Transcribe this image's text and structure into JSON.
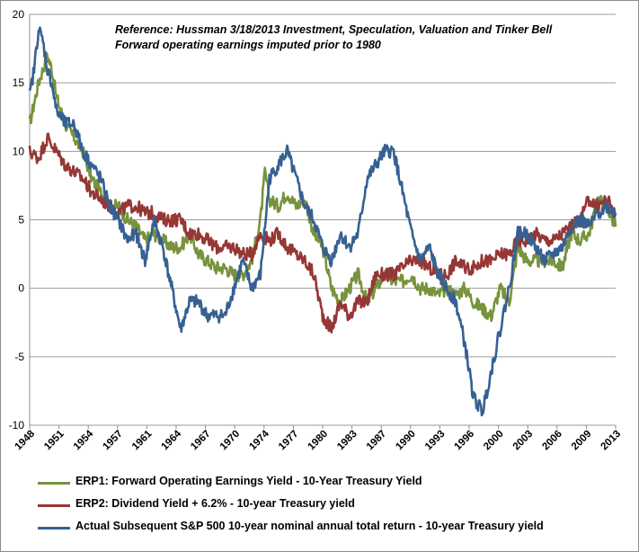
{
  "annotations": [
    "Reference: Hussman 3/18/2013  Investment, Speculation, Valuation and Tinker Bell",
    "Forward operating earnings imputed prior to 1980"
  ],
  "legend": [
    {
      "label": "ERP1: Forward Operating Earnings Yield - 10-Year Treasury Yield",
      "color": "#77933c"
    },
    {
      "label": "ERP2: Dividend Yield + 6.2% - 10-year Treasury yield",
      "color": "#953735"
    },
    {
      "label": "Actual Subsequent S&P 500 10-year nominal annual total return - 10-year Treasury yield",
      "color": "#376092"
    }
  ],
  "chart_data": {
    "type": "line",
    "title": "",
    "xlabel": "",
    "ylabel": "",
    "xlim": [
      1948,
      2014
    ],
    "ylim": [
      -10,
      20
    ],
    "x_ticks": [
      "1948",
      "1951",
      "1954",
      "1957",
      "1961",
      "1964",
      "1967",
      "1970",
      "1974",
      "1977",
      "1980",
      "1983",
      "1987",
      "1990",
      "1993",
      "1996",
      "2000",
      "2003",
      "2006",
      "2009",
      "2013"
    ],
    "y_ticks": [
      -10,
      -5,
      0,
      5,
      10,
      15,
      20
    ],
    "grid": "horizontal",
    "legend_position": "bottom",
    "series": [
      {
        "name": "ERP1: Forward Operating Earnings Yield - 10-Year Treasury Yield",
        "color": "#77933c",
        "x": [
          1948,
          1949,
          1950,
          1950.5,
          1951,
          1952,
          1953,
          1954,
          1955,
          1956,
          1957,
          1958,
          1959,
          1960,
          1961,
          1962,
          1963,
          1964,
          1965,
          1966,
          1967,
          1968,
          1969,
          1970,
          1971,
          1972,
          1973,
          1974,
          1974.5,
          1975,
          1976,
          1977,
          1978,
          1979,
          1980,
          1981,
          1982,
          1983,
          1984,
          1985,
          1986,
          1987,
          1988,
          1989,
          1990,
          1991,
          1992,
          1993,
          1994,
          1995,
          1996,
          1997,
          1998,
          1999,
          2000,
          2001,
          2002,
          2003,
          2004,
          2005,
          2006,
          2007,
          2008,
          2009,
          2010,
          2011,
          2012,
          2013,
          2014
        ],
        "y": [
          12,
          15,
          17,
          16,
          14,
          12,
          11,
          10,
          8,
          7,
          6,
          6,
          5,
          4.5,
          3.5,
          4,
          3.5,
          3,
          3,
          4,
          2.5,
          2,
          1.5,
          1.5,
          1,
          1,
          2,
          5,
          8.5,
          6.5,
          6,
          7,
          6,
          6.5,
          4,
          3,
          0,
          -1,
          0,
          1,
          -1,
          0,
          1,
          0.5,
          0.5,
          1,
          0,
          0,
          -0.5,
          0,
          -0.5,
          0,
          -1,
          -1.5,
          -2,
          0,
          -1,
          3,
          2,
          2,
          2,
          2,
          1.5,
          4,
          3.5,
          4,
          6.5,
          6,
          4.5
        ]
      },
      {
        "name": "ERP2: Dividend Yield + 6.2% - 10-year Treasury yield",
        "color": "#953735",
        "x": [
          1948,
          1949,
          1950,
          1951,
          1952,
          1953,
          1954,
          1955,
          1956,
          1957,
          1958,
          1959,
          1960,
          1961,
          1962,
          1963,
          1964,
          1965,
          1966,
          1967,
          1968,
          1969,
          1970,
          1971,
          1972,
          1973,
          1974,
          1975,
          1976,
          1977,
          1978,
          1979,
          1980,
          1981,
          1982,
          1983,
          1984,
          1985,
          1986,
          1987,
          1988,
          1989,
          1990,
          1991,
          1992,
          1993,
          1994,
          1995,
          1996,
          1997,
          1998,
          1999,
          2000,
          2001,
          2002,
          2003,
          2004,
          2005,
          2006,
          2007,
          2008,
          2009,
          2010,
          2011,
          2012,
          2013,
          2014
        ],
        "y": [
          10,
          9.5,
          11,
          10,
          9,
          8.5,
          8,
          7,
          6.5,
          6,
          5.5,
          6,
          6,
          5.5,
          5.5,
          5,
          5,
          5,
          4,
          4,
          3.5,
          3,
          3,
          3,
          2.5,
          2.5,
          4,
          3.5,
          4,
          3,
          2.5,
          2,
          1,
          -2,
          -3,
          -1,
          -2,
          -1,
          -1,
          1,
          1,
          1,
          1.5,
          2,
          2,
          1.5,
          1,
          1,
          2,
          1.5,
          1.5,
          2,
          2,
          2.5,
          2.5,
          3.5,
          3.5,
          4,
          3.5,
          3.5,
          4,
          4.5,
          5,
          6.5,
          6,
          6.5,
          5.5
        ]
      },
      {
        "name": "Actual Subsequent S&P 500 10-year nominal annual total return - 10-year Treasury yield",
        "color": "#376092",
        "x": [
          1948,
          1948.5,
          1949,
          1949.5,
          1950,
          1950.5,
          1951,
          1952,
          1953,
          1954,
          1955,
          1956,
          1957,
          1958,
          1959,
          1960,
          1961,
          1962,
          1963,
          1964,
          1965,
          1966,
          1967,
          1968,
          1969,
          1970,
          1971,
          1972,
          1973,
          1974,
          1975,
          1976,
          1977,
          1978,
          1979,
          1980,
          1981,
          1982,
          1983,
          1984,
          1985,
          1986,
          1987,
          1988,
          1989,
          1990,
          1991,
          1992,
          1993,
          1994,
          1995,
          1996,
          1997,
          1998,
          1999,
          2000,
          2001,
          2002,
          2003,
          2004,
          2005,
          2006,
          2007,
          2008,
          2009,
          2010,
          2011,
          2012,
          2013,
          2014
        ],
        "y": [
          14,
          16,
          19,
          18,
          16,
          15,
          13,
          12,
          12,
          10,
          9,
          8,
          6,
          5,
          3.5,
          4,
          2,
          5,
          3,
          0,
          -3,
          -1,
          -1,
          -2,
          -2,
          -2,
          0,
          2,
          0,
          1,
          8,
          9,
          10,
          8,
          6,
          5,
          3,
          2,
          4,
          3,
          4,
          8,
          9,
          10,
          10,
          7,
          4,
          2,
          3,
          1,
          0,
          -1,
          -4,
          -8,
          -9,
          -6,
          -3,
          0,
          4,
          4,
          3,
          2,
          2.5,
          3,
          4.5,
          5,
          4.5,
          5.5,
          6,
          5.5
        ]
      }
    ]
  }
}
